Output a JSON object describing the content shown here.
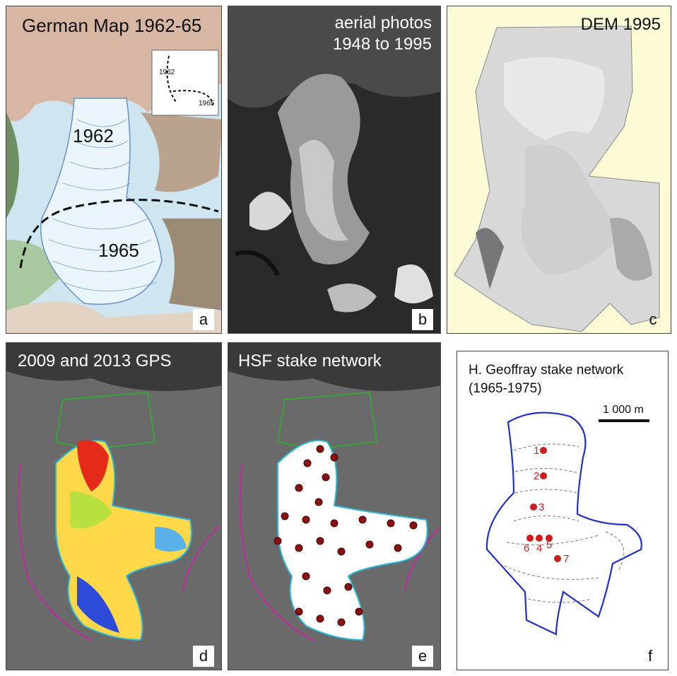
{
  "panels": {
    "a": {
      "title": "German Map 1962-65",
      "letter": "a",
      "year_1962": "1962",
      "year_1965": "1965",
      "inset_1962": "1962",
      "inset_1965": "1965"
    },
    "b": {
      "title_line1": "aerial photos",
      "title_line2": "1948 to 1995",
      "letter": "b"
    },
    "c": {
      "title": "DEM 1995",
      "letter": "c"
    },
    "d": {
      "title": "2009 and 2013 GPS",
      "letter": "d"
    },
    "e": {
      "title": "HSF stake network",
      "letter": "e"
    },
    "f": {
      "title_line1": "H. Geoffray stake network",
      "title_line2": "(1965-1975)",
      "scale_label": "1 000 m",
      "letter": "f",
      "stakes": [
        "1",
        "2",
        "3",
        "4",
        "5",
        "6",
        "7"
      ]
    }
  },
  "colors": {
    "outline_blue": "#1f2fd0",
    "stake_red": "#d11a1a",
    "dem_bg": "#fdfbd6",
    "green_boundary": "#3aa33a",
    "magenta_boundary": "#c02aa0",
    "cyan_outline": "#2ab8d8"
  }
}
